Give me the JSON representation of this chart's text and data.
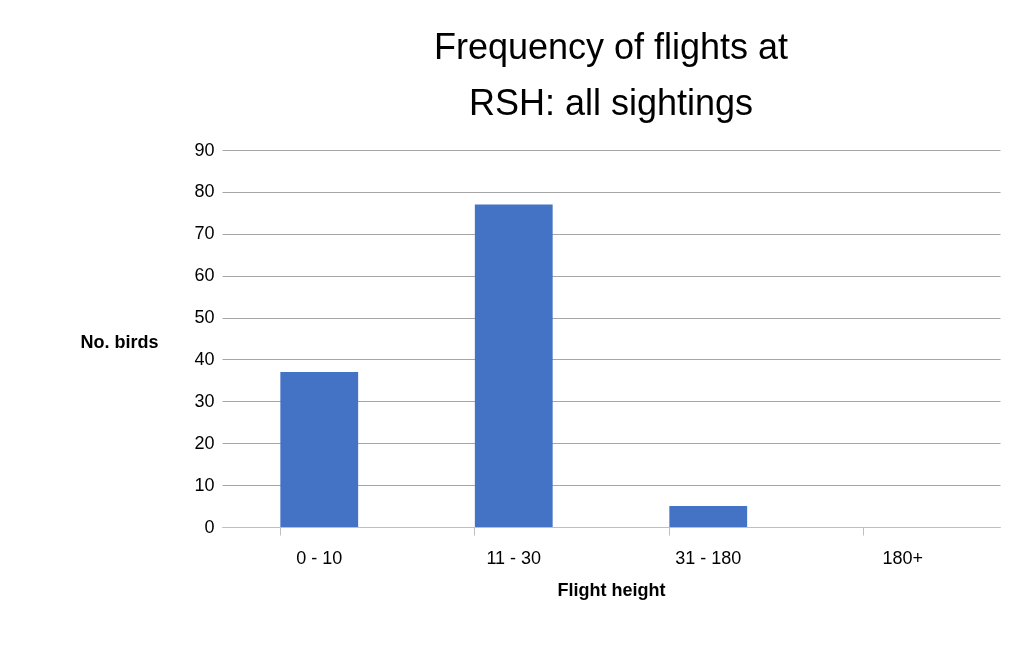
{
  "chart_data": {
    "type": "bar",
    "title": "Frequency of flights at\nRSH: all sightings",
    "xlabel": "Flight height",
    "ylabel": "No. birds",
    "categories": [
      "0 - 10",
      "11 - 30",
      "31 - 180",
      "180+"
    ],
    "values": [
      37,
      77,
      5,
      0
    ],
    "color": "#4472c4",
    "ylim": [
      0,
      90
    ],
    "yticks": [
      0,
      10,
      20,
      30,
      40,
      50,
      60,
      70,
      80,
      90
    ],
    "grid": "y"
  }
}
